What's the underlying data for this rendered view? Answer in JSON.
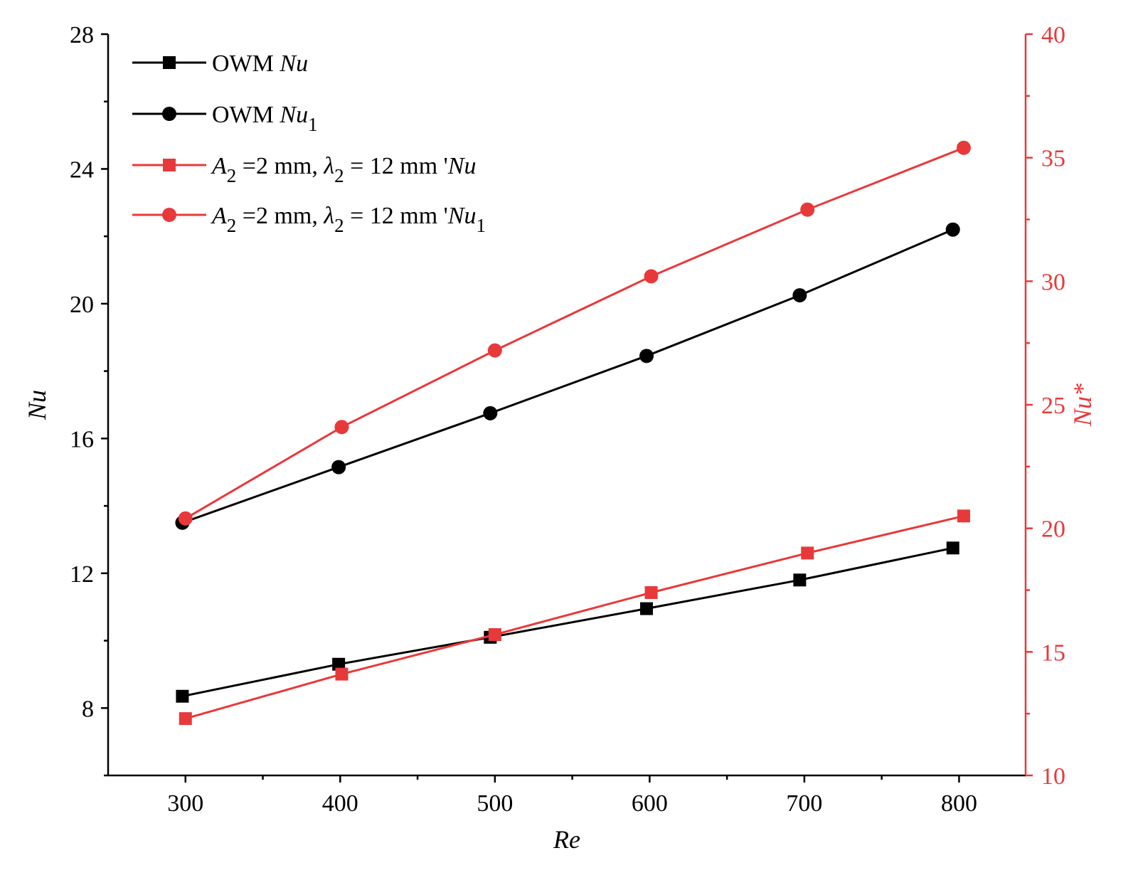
{
  "chart_data": {
    "type": "line",
    "xlabel": "Re",
    "ylabel": "Nu",
    "y2label": "Nu*",
    "xlim": [
      250,
      843
    ],
    "ylim": [
      6,
      28
    ],
    "y2lim": [
      10,
      40
    ],
    "xticks": [
      300,
      400,
      500,
      600,
      700,
      800
    ],
    "yticks": [
      8,
      12,
      16,
      20,
      24,
      28
    ],
    "y2ticks": [
      10,
      15,
      20,
      25,
      30,
      35,
      40
    ],
    "legend_position": "top-left",
    "series": [
      {
        "name": "OWM Nu",
        "legend_parts": [
          {
            "t": "OWM "
          },
          {
            "t": "Nu",
            "i": true
          }
        ],
        "axis": "left",
        "marker": "square",
        "color": "#000000",
        "x": [
          298,
          399,
          497,
          598,
          697,
          796
        ],
        "y": [
          8.35,
          9.3,
          10.1,
          10.95,
          11.8,
          12.75
        ]
      },
      {
        "name": "OWM Nu1",
        "legend_parts": [
          {
            "t": "OWM "
          },
          {
            "t": "Nu",
            "i": true
          },
          {
            "t": "1",
            "sub": true
          }
        ],
        "axis": "left",
        "marker": "circle",
        "color": "#000000",
        "x": [
          298,
          399,
          497,
          598,
          697,
          796
        ],
        "y": [
          13.5,
          15.15,
          16.75,
          18.45,
          20.25,
          22.2
        ]
      },
      {
        "name": "A2 =2 mm, λ2 = 12 mm 'Nu",
        "legend_parts": [
          {
            "t": "A",
            "i": true
          },
          {
            "t": "2",
            "sub": true
          },
          {
            "t": " =2 mm, "
          },
          {
            "t": "λ",
            "i": true
          },
          {
            "t": "2",
            "sub": true
          },
          {
            "t": " = 12 mm '"
          },
          {
            "t": "Nu",
            "i": true
          }
        ],
        "axis": "right",
        "marker": "square",
        "color": "#e8393a",
        "x": [
          300,
          401,
          500,
          601,
          702,
          803
        ],
        "y": [
          12.3,
          14.1,
          15.7,
          17.4,
          19.0,
          20.5
        ]
      },
      {
        "name": "A2 =2 mm, λ2 = 12 mm 'Nu1",
        "legend_parts": [
          {
            "t": "A",
            "i": true
          },
          {
            "t": "2",
            "sub": true
          },
          {
            "t": " =2 mm, "
          },
          {
            "t": "λ",
            "i": true
          },
          {
            "t": "2",
            "sub": true
          },
          {
            "t": " = 12 mm '"
          },
          {
            "t": "Nu",
            "i": true
          },
          {
            "t": "1",
            "sub": true
          }
        ],
        "axis": "right",
        "marker": "circle",
        "color": "#e8393a",
        "x": [
          300,
          401,
          500,
          601,
          702,
          803
        ],
        "y": [
          20.4,
          24.1,
          27.2,
          30.2,
          32.9,
          35.4
        ]
      }
    ]
  }
}
